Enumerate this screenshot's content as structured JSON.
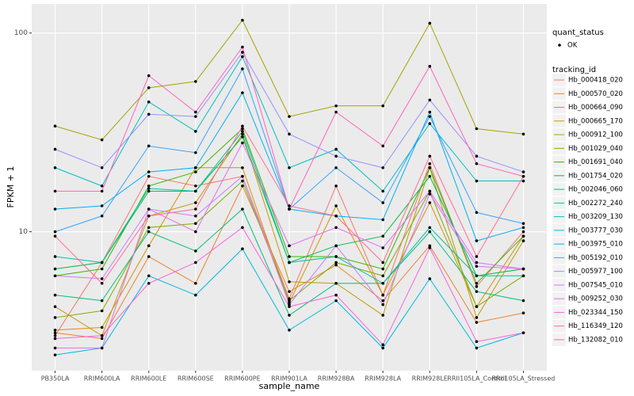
{
  "chart_data": {
    "type": "line",
    "x_label": "sample_name",
    "y_label": "FPKM + 1",
    "categories": [
      "PB350LA",
      "RRIM600LA",
      "RRIM600LE",
      "RRIM600SE",
      "RRIM600PE",
      "RRIM901LA",
      "RRIM928BA",
      "RRIM928LA",
      "RRIM928LE",
      "RRII105LA_Control",
      "RRII105LA_Stressed"
    ],
    "ylim": [
      2.0,
      140
    ],
    "yticks": [
      10,
      100
    ],
    "y_log": true,
    "grid": true,
    "shape_legend": {
      "title": "quant_status",
      "labels": [
        "OK"
      ]
    },
    "color_legend_title": "tracking_id",
    "series": [
      {
        "name": "Hb_000418_020",
        "color": "#F8766D",
        "values": [
          3.0,
          7,
          19,
          17,
          19,
          4.6,
          17,
          4.8,
          22,
          5.3,
          10
        ]
      },
      {
        "name": "Hb_000570_020",
        "color": "#EA8331",
        "values": [
          3.1,
          2.9,
          7.5,
          5.5,
          17,
          5.0,
          6.8,
          4.5,
          8.5,
          3.5,
          3.9
        ]
      },
      {
        "name": "Hb_000664_090",
        "color": "#D89000",
        "values": [
          3.2,
          3.3,
          8.5,
          21,
          21,
          4.4,
          13.5,
          4.8,
          14,
          4.2,
          9.5
        ]
      },
      {
        "name": "Hb_000665_170",
        "color": "#C09B00",
        "values": [
          4.2,
          3.0,
          12,
          14,
          31,
          5.6,
          5.5,
          3.8,
          21,
          3.7,
          9
        ]
      },
      {
        "name": "Hb_000912_100",
        "color": "#A3A500",
        "values": [
          34,
          29,
          53,
          57,
          116,
          38,
          43,
          43,
          112,
          33,
          31
        ]
      },
      {
        "name": "Hb_001029_040",
        "color": "#7CAE00",
        "values": [
          3.7,
          4,
          10.5,
          11,
          18,
          4.5,
          7,
          6,
          16,
          4.2,
          6
        ]
      },
      {
        "name": "Hb_001691_040",
        "color": "#39B600",
        "values": [
          6,
          6.5,
          17,
          20,
          33,
          7.5,
          7.5,
          6.5,
          21,
          5.5,
          9.5
        ]
      },
      {
        "name": "Hb_001754_020",
        "color": "#00BB4E",
        "values": [
          6.5,
          7,
          16,
          16,
          30,
          7,
          8.5,
          9.5,
          19,
          6,
          6.5
        ]
      },
      {
        "name": "Hb_002046_060",
        "color": "#00BF7D",
        "values": [
          4.8,
          4.5,
          10,
          8,
          13,
          3.8,
          5.5,
          5.5,
          10,
          5,
          4.5
        ]
      },
      {
        "name": "Hb_002272_240",
        "color": "#00C1A3",
        "values": [
          7.5,
          7,
          16.5,
          16,
          32,
          7,
          7.5,
          5.5,
          10.5,
          6,
          6
        ]
      },
      {
        "name": "Hb_003209_130",
        "color": "#00BFC4",
        "values": [
          21,
          17,
          45,
          32,
          76,
          21,
          26,
          16,
          35,
          18,
          18
        ]
      },
      {
        "name": "Hb_003777_030",
        "color": "#00BAE0",
        "values": [
          2.4,
          2.6,
          6,
          4.8,
          8.2,
          3.2,
          4.5,
          2.6,
          5.8,
          2.6,
          3.1
        ]
      },
      {
        "name": "Hb_003975_010",
        "color": "#00B0F6",
        "values": [
          13,
          13.5,
          20,
          21,
          50,
          13,
          12,
          11.5,
          40,
          9,
          10.5
        ]
      },
      {
        "name": "Hb_005192_010",
        "color": "#35A2FF",
        "values": [
          10,
          12,
          27,
          25,
          66,
          13,
          21,
          14,
          38,
          12.5,
          11
        ]
      },
      {
        "name": "Hb_005977_100",
        "color": "#9590FF",
        "values": [
          26,
          21,
          39,
          38,
          80,
          31,
          24,
          21,
          46,
          24,
          20
        ]
      },
      {
        "name": "Hb_007545_010",
        "color": "#C77CFF",
        "values": [
          6,
          5.8,
          13,
          12,
          19,
          4.3,
          8.5,
          4.3,
          15.5,
          6.7,
          6.5
        ]
      },
      {
        "name": "Hb_009252_030",
        "color": "#E76BF3",
        "values": [
          2.6,
          2.6,
          13,
          10,
          28,
          8.5,
          10.5,
          8.3,
          16,
          7,
          6.5
        ]
      },
      {
        "name": "Hb_023344_150",
        "color": "#FA62DB",
        "values": [
          2.9,
          3.0,
          5.5,
          7,
          10.5,
          4.2,
          4.8,
          2.7,
          8.3,
          2.8,
          3.1
        ]
      },
      {
        "name": "Hb_116349_120",
        "color": "#FF62BC",
        "values": [
          16,
          16,
          61,
          40,
          85,
          13,
          40,
          27,
          68,
          22,
          19
        ]
      },
      {
        "name": "Hb_132082_010",
        "color": "#FF6C91",
        "values": [
          9.5,
          5.5,
          12,
          13,
          34,
          13.5,
          12,
          7,
          24,
          7.5,
          19
        ]
      }
    ]
  }
}
